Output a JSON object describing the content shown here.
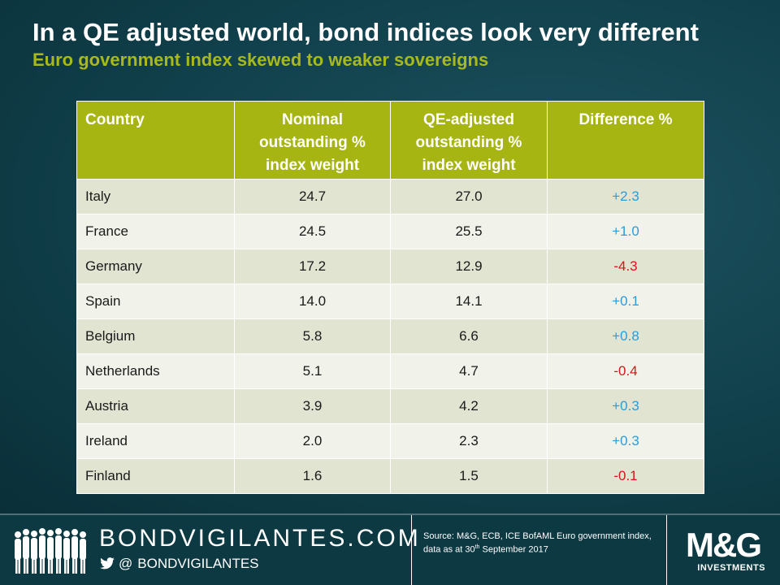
{
  "title": "In a QE adjusted world, bond indices look very different",
  "subtitle": "Euro government index skewed to weaker sovereigns",
  "table": {
    "headers": {
      "country": "Country",
      "nominal": "Nominal outstanding % index weight",
      "qe_adjusted": "QE-adjusted outstanding % index weight",
      "difference": "Difference %"
    },
    "rows": [
      {
        "country": "Italy",
        "nominal": "24.7",
        "qe": "27.0",
        "diff": "+2.3",
        "sign": "pos"
      },
      {
        "country": "France",
        "nominal": "24.5",
        "qe": "25.5",
        "diff": "+1.0",
        "sign": "pos"
      },
      {
        "country": "Germany",
        "nominal": "17.2",
        "qe": "12.9",
        "diff": "-4.3",
        "sign": "neg"
      },
      {
        "country": "Spain",
        "nominal": "14.0",
        "qe": "14.1",
        "diff": "+0.1",
        "sign": "pos"
      },
      {
        "country": "Belgium",
        "nominal": "5.8",
        "qe": "6.6",
        "diff": "+0.8",
        "sign": "pos"
      },
      {
        "country": "Netherlands",
        "nominal": "5.1",
        "qe": "4.7",
        "diff": "-0.4",
        "sign": "neg"
      },
      {
        "country": "Austria",
        "nominal": "3.9",
        "qe": "4.2",
        "diff": "+0.3",
        "sign": "pos"
      },
      {
        "country": "Ireland",
        "nominal": "2.0",
        "qe": "2.3",
        "diff": "+0.3",
        "sign": "pos"
      },
      {
        "country": "Finland",
        "nominal": "1.6",
        "qe": "1.5",
        "diff": "-0.1",
        "sign": "neg"
      }
    ]
  },
  "footer": {
    "brand": "BONDVIGILANTES.COM",
    "handle_at": "@",
    "handle": "BONDVIGILANTES",
    "source_line1": "Source: M&G, ECB, ICE BofAML Euro government index, data as at 30",
    "source_sup": "th",
    "source_line2": " September 2017",
    "logo_mark": "M&G",
    "logo_sub": "INVESTMENTS"
  },
  "colors": {
    "positive": "#2c9bd6",
    "negative": "#d7141a",
    "header_bg": "#a6b511",
    "subtitle": "#a9b91c"
  }
}
